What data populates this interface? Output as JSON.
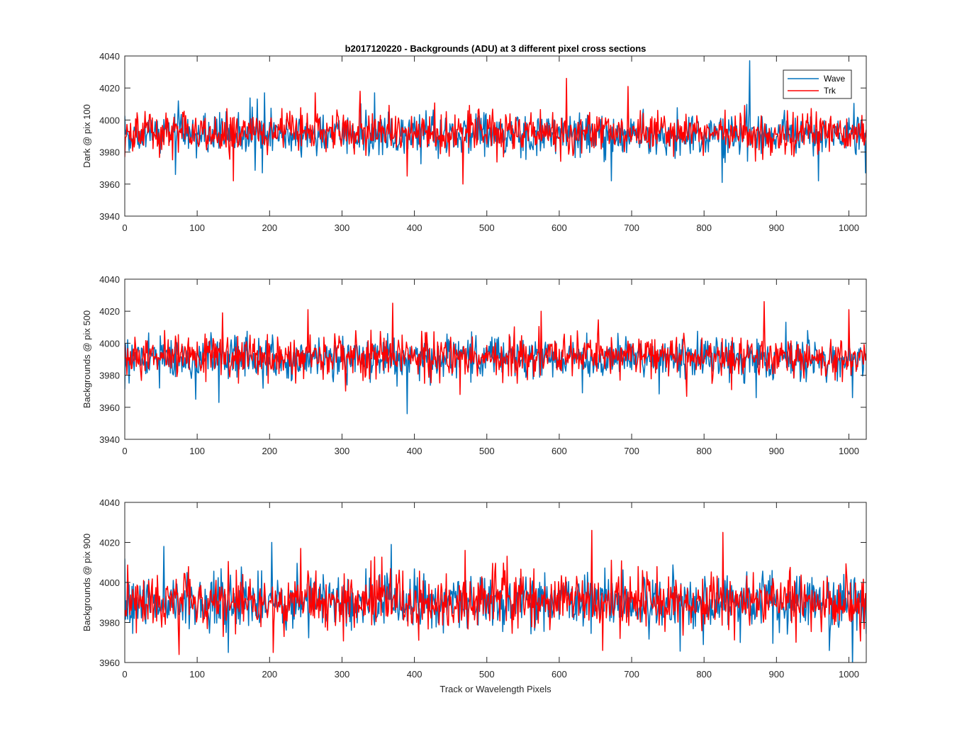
{
  "chart_data": {
    "type": "line",
    "title": "b2017120220 - Backgrounds (ADU) at 3 different pixel cross sections",
    "xlabel": "Track or Wavelength Pixels",
    "xlim": [
      0,
      1024
    ],
    "xticks": [
      0,
      100,
      200,
      300,
      400,
      500,
      600,
      700,
      800,
      900,
      1000
    ],
    "legend": {
      "location": "top-right",
      "entries": [
        "Wave",
        "Trk"
      ]
    },
    "series_colors": {
      "Wave": "#0072BD",
      "Trk": "#FF0000"
    },
    "panels": [
      {
        "ylabel": "Dark @ pix 100",
        "ylim": [
          3940,
          4040
        ],
        "yticks": [
          3940,
          3960,
          3980,
          4000,
          4020,
          4040
        ],
        "show_legend": true,
        "series": [
          {
            "name": "Wave",
            "baseline": 3991,
            "noise_sd": 6.5,
            "seed": 11,
            "spikes": [
              [
                193,
                4017
              ],
              [
                345,
                4017
              ],
              [
                863,
                4037
              ],
              [
                70,
                3966
              ],
              [
                190,
                3967
              ],
              [
                760,
                3976
              ],
              [
                958,
                3962
              ],
              [
                672,
                3962
              ],
              [
                1023,
                3967
              ],
              [
                825,
                3961
              ]
            ]
          },
          {
            "name": "Trk",
            "baseline": 3992,
            "noise_sd": 6.5,
            "seed": 23,
            "spikes": [
              [
                150,
                3962
              ],
              [
                467,
                3960
              ],
              [
                610,
                4026
              ],
              [
                695,
                4021
              ],
              [
                325,
                4018
              ],
              [
                390,
                3965
              ],
              [
                263,
                4017
              ]
            ]
          }
        ]
      },
      {
        "ylabel": "Backgrounds @ pix 500",
        "ylim": [
          3940,
          4040
        ],
        "yticks": [
          3940,
          3960,
          3980,
          4000,
          4020,
          4040
        ],
        "show_legend": false,
        "series": [
          {
            "name": "Wave",
            "baseline": 3991,
            "noise_sd": 6.5,
            "seed": 37,
            "spikes": [
              [
                390,
                3956
              ],
              [
                98,
                3965
              ],
              [
                130,
                3963
              ],
              [
                872,
                3966
              ],
              [
                1005,
                3966
              ],
              [
                632,
                3969
              ]
            ]
          },
          {
            "name": "Trk",
            "baseline": 3992,
            "noise_sd": 6.5,
            "seed": 51,
            "spikes": [
              [
                370,
                4025
              ],
              [
                883,
                4026
              ],
              [
                1000,
                4021
              ],
              [
                253,
                4021
              ],
              [
                575,
                4020
              ],
              [
                135,
                4019
              ],
              [
                463,
                3968
              ]
            ]
          }
        ]
      },
      {
        "ylabel": "Backgrounds @ pix 900",
        "ylim": [
          3960,
          4040
        ],
        "yticks": [
          3960,
          3980,
          4000,
          4020,
          4040
        ],
        "show_legend": false,
        "series": [
          {
            "name": "Wave",
            "baseline": 3990,
            "noise_sd": 7.0,
            "seed": 67,
            "spikes": [
              [
                54,
                4018
              ],
              [
                203,
                4020
              ],
              [
                1005,
                3958
              ],
              [
                143,
                3965
              ],
              [
                850,
                3970
              ],
              [
                973,
                3966
              ],
              [
                368,
                4019
              ]
            ]
          },
          {
            "name": "Trk",
            "baseline": 3991,
            "noise_sd": 7.0,
            "seed": 83,
            "spikes": [
              [
                645,
                4026
              ],
              [
                826,
                4025
              ],
              [
                243,
                4017
              ],
              [
                75,
                3964
              ],
              [
                205,
                3965
              ],
              [
                660,
                3966
              ],
              [
                470,
                4016
              ]
            ]
          }
        ]
      }
    ]
  }
}
